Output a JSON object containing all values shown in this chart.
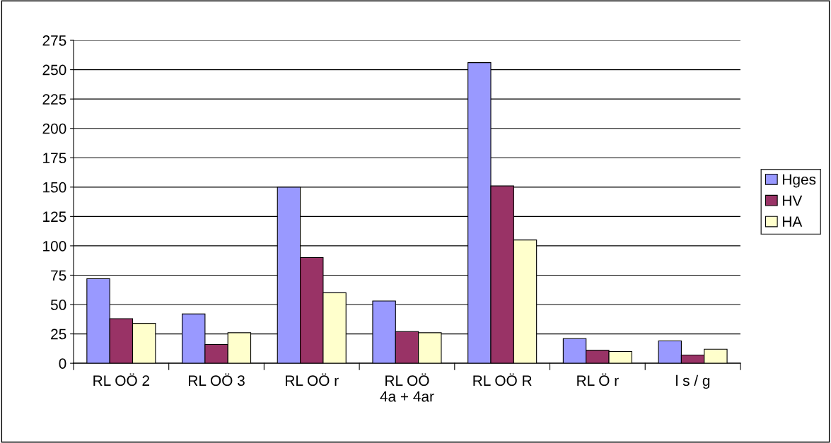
{
  "chart_data": {
    "type": "bar",
    "categories": [
      "RL OÖ 2",
      "RL OÖ 3",
      "RL OÖ r",
      "RL OÖ\n4a + 4ar",
      "RL OÖ R",
      "RL Ö r",
      "l s / g"
    ],
    "series": [
      {
        "name": "Hges",
        "color": "#9999ff",
        "values": [
          72,
          42,
          150,
          53,
          256,
          21,
          19
        ]
      },
      {
        "name": "HV",
        "color": "#993366",
        "values": [
          38,
          16,
          90,
          27,
          151,
          11,
          7
        ]
      },
      {
        "name": "HA",
        "color": "#ffffcc",
        "values": [
          34,
          26,
          60,
          26,
          105,
          10,
          12
        ]
      }
    ],
    "ylim": [
      0,
      275
    ],
    "yticks": [
      0,
      25,
      50,
      75,
      100,
      125,
      150,
      175,
      200,
      225,
      250,
      275
    ],
    "grid": "y",
    "legend": "right"
  }
}
